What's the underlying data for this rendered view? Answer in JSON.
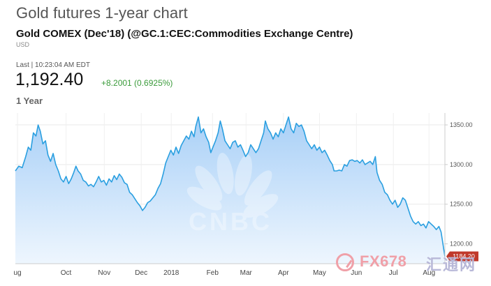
{
  "header": {
    "title": "Gold futures 1-year chart",
    "instrument": "Gold COMEX (Dec'18) (@GC.1:CEC:Commodities Exchange Centre)",
    "currency": "USD",
    "last_label": "Last | 10:23:04 AM EDT",
    "last_price": "1,192.40",
    "change": "+8.2001 (0.6925%)",
    "range": "1 Year"
  },
  "colors": {
    "line": "#2a9fe0",
    "fill_top": "#a9d0f7",
    "fill_bottom": "#eef6fe",
    "badge": "#c0392b"
  },
  "watermark": {
    "text_a": "FX678",
    "text_b": "汇通网",
    "cnbc": "CNBC"
  },
  "chart_data": {
    "type": "area",
    "ylim": [
      1175,
      1365
    ],
    "y_ticks": [
      {
        "value": 1350,
        "label": "1350.00"
      },
      {
        "value": 1300,
        "label": "1300.00"
      },
      {
        "value": 1250,
        "label": "1250.00"
      },
      {
        "value": 1200,
        "label": "1200.00"
      }
    ],
    "x_ticks": [
      {
        "label": "ug",
        "t": 0.005
      },
      {
        "label": "Oct",
        "t": 0.118
      },
      {
        "label": "Nov",
        "t": 0.207
      },
      {
        "label": "Dec",
        "t": 0.293
      },
      {
        "label": "2018",
        "t": 0.363
      },
      {
        "label": "Feb",
        "t": 0.459
      },
      {
        "label": "Mar",
        "t": 0.537
      },
      {
        "label": "Apr",
        "t": 0.624
      },
      {
        "label": "May",
        "t": 0.708
      },
      {
        "label": "Jun",
        "t": 0.794
      },
      {
        "label": "Jul",
        "t": 0.88
      },
      {
        "label": "Aug",
        "t": 0.963
      }
    ],
    "last_value_label": "1184.20",
    "last_value": 1184.2,
    "series": [
      {
        "values": [
          [
            0.0,
            1292
          ],
          [
            0.008,
            1298
          ],
          [
            0.016,
            1296
          ],
          [
            0.024,
            1310
          ],
          [
            0.03,
            1322
          ],
          [
            0.036,
            1318
          ],
          [
            0.042,
            1340
          ],
          [
            0.048,
            1336
          ],
          [
            0.053,
            1350
          ],
          [
            0.058,
            1342
          ],
          [
            0.064,
            1326
          ],
          [
            0.07,
            1330
          ],
          [
            0.076,
            1312
          ],
          [
            0.082,
            1304
          ],
          [
            0.088,
            1314
          ],
          [
            0.094,
            1300
          ],
          [
            0.1,
            1292
          ],
          [
            0.106,
            1282
          ],
          [
            0.112,
            1278
          ],
          [
            0.118,
            1285
          ],
          [
            0.124,
            1276
          ],
          [
            0.13,
            1282
          ],
          [
            0.136,
            1290
          ],
          [
            0.141,
            1298
          ],
          [
            0.146,
            1292
          ],
          [
            0.152,
            1288
          ],
          [
            0.158,
            1280
          ],
          [
            0.164,
            1278
          ],
          [
            0.17,
            1273
          ],
          [
            0.176,
            1275
          ],
          [
            0.182,
            1272
          ],
          [
            0.188,
            1278
          ],
          [
            0.194,
            1285
          ],
          [
            0.2,
            1278
          ],
          [
            0.206,
            1280
          ],
          [
            0.212,
            1274
          ],
          [
            0.218,
            1282
          ],
          [
            0.224,
            1278
          ],
          [
            0.23,
            1286
          ],
          [
            0.236,
            1281
          ],
          [
            0.242,
            1288
          ],
          [
            0.248,
            1284
          ],
          [
            0.254,
            1277
          ],
          [
            0.26,
            1275
          ],
          [
            0.266,
            1265
          ],
          [
            0.272,
            1262
          ],
          [
            0.278,
            1257
          ],
          [
            0.284,
            1252
          ],
          [
            0.29,
            1248
          ],
          [
            0.296,
            1242
          ],
          [
            0.302,
            1246
          ],
          [
            0.308,
            1252
          ],
          [
            0.314,
            1254
          ],
          [
            0.32,
            1258
          ],
          [
            0.326,
            1262
          ],
          [
            0.332,
            1270
          ],
          [
            0.338,
            1276
          ],
          [
            0.344,
            1288
          ],
          [
            0.35,
            1302
          ],
          [
            0.356,
            1310
          ],
          [
            0.362,
            1318
          ],
          [
            0.368,
            1312
          ],
          [
            0.374,
            1322
          ],
          [
            0.38,
            1314
          ],
          [
            0.386,
            1324
          ],
          [
            0.392,
            1330
          ],
          [
            0.398,
            1336
          ],
          [
            0.404,
            1332
          ],
          [
            0.41,
            1342
          ],
          [
            0.416,
            1335
          ],
          [
            0.42,
            1348
          ],
          [
            0.426,
            1360
          ],
          [
            0.432,
            1340
          ],
          [
            0.438,
            1345
          ],
          [
            0.444,
            1335
          ],
          [
            0.45,
            1328
          ],
          [
            0.455,
            1315
          ],
          [
            0.46,
            1322
          ],
          [
            0.466,
            1330
          ],
          [
            0.472,
            1340
          ],
          [
            0.477,
            1355
          ],
          [
            0.482,
            1345
          ],
          [
            0.488,
            1330
          ],
          [
            0.494,
            1325
          ],
          [
            0.5,
            1320
          ],
          [
            0.506,
            1328
          ],
          [
            0.512,
            1330
          ],
          [
            0.518,
            1322
          ],
          [
            0.524,
            1325
          ],
          [
            0.53,
            1318
          ],
          [
            0.536,
            1310
          ],
          [
            0.542,
            1315
          ],
          [
            0.548,
            1325
          ],
          [
            0.554,
            1320
          ],
          [
            0.56,
            1315
          ],
          [
            0.566,
            1320
          ],
          [
            0.572,
            1330
          ],
          [
            0.578,
            1340
          ],
          [
            0.582,
            1355
          ],
          [
            0.588,
            1345
          ],
          [
            0.594,
            1340
          ],
          [
            0.6,
            1332
          ],
          [
            0.606,
            1340
          ],
          [
            0.612,
            1335
          ],
          [
            0.618,
            1345
          ],
          [
            0.624,
            1340
          ],
          [
            0.63,
            1350
          ],
          [
            0.636,
            1360
          ],
          [
            0.642,
            1345
          ],
          [
            0.648,
            1340
          ],
          [
            0.654,
            1352
          ],
          [
            0.66,
            1348
          ],
          [
            0.666,
            1350
          ],
          [
            0.672,
            1342
          ],
          [
            0.678,
            1330
          ],
          [
            0.684,
            1325
          ],
          [
            0.69,
            1320
          ],
          [
            0.696,
            1325
          ],
          [
            0.702,
            1318
          ],
          [
            0.708,
            1322
          ],
          [
            0.714,
            1315
          ],
          [
            0.72,
            1318
          ],
          [
            0.726,
            1312
          ],
          [
            0.732,
            1305
          ],
          [
            0.738,
            1300
          ],
          [
            0.742,
            1292
          ],
          [
            0.748,
            1292
          ],
          [
            0.754,
            1293
          ],
          [
            0.76,
            1292
          ],
          [
            0.766,
            1300
          ],
          [
            0.772,
            1298
          ],
          [
            0.778,
            1305
          ],
          [
            0.784,
            1306
          ],
          [
            0.79,
            1304
          ],
          [
            0.796,
            1305
          ],
          [
            0.802,
            1302
          ],
          [
            0.808,
            1306
          ],
          [
            0.814,
            1300
          ],
          [
            0.82,
            1302
          ],
          [
            0.826,
            1304
          ],
          [
            0.832,
            1300
          ],
          [
            0.838,
            1310
          ],
          [
            0.842,
            1290
          ],
          [
            0.848,
            1280
          ],
          [
            0.854,
            1275
          ],
          [
            0.86,
            1265
          ],
          [
            0.866,
            1262
          ],
          [
            0.872,
            1255
          ],
          [
            0.878,
            1250
          ],
          [
            0.884,
            1255
          ],
          [
            0.89,
            1246
          ],
          [
            0.896,
            1250
          ],
          [
            0.902,
            1258
          ],
          [
            0.908,
            1255
          ],
          [
            0.914,
            1245
          ],
          [
            0.92,
            1235
          ],
          [
            0.926,
            1228
          ],
          [
            0.932,
            1225
          ],
          [
            0.938,
            1228
          ],
          [
            0.944,
            1223
          ],
          [
            0.95,
            1225
          ],
          [
            0.956,
            1220
          ],
          [
            0.962,
            1228
          ],
          [
            0.968,
            1225
          ],
          [
            0.974,
            1222
          ],
          [
            0.98,
            1218
          ],
          [
            0.986,
            1222
          ],
          [
            0.991,
            1215
          ],
          [
            0.994,
            1205
          ],
          [
            0.997,
            1194
          ],
          [
            1.0,
            1184
          ]
        ]
      }
    ]
  }
}
